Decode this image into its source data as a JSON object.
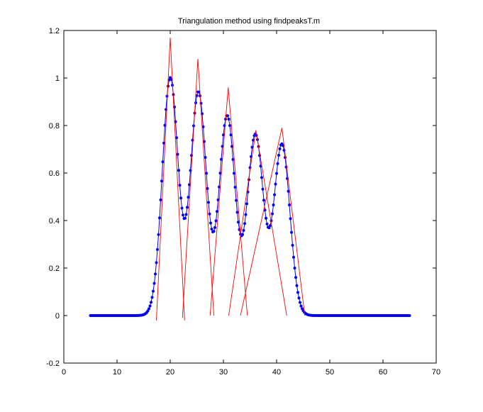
{
  "chart_data": {
    "type": "line",
    "title": "Triangulation method using findpeaksT.m",
    "xlabel": "",
    "ylabel": "",
    "xlim": [
      0,
      70
    ],
    "ylim": [
      -0.2,
      1.2
    ],
    "x_ticks": [
      "0",
      "10",
      "20",
      "30",
      "40",
      "50",
      "60",
      "70"
    ],
    "y_ticks": [
      "-0.2",
      "0",
      "0.2",
      "0.4",
      "0.6",
      "0.8",
      "1",
      "1.2"
    ],
    "grid": false,
    "legend": "none",
    "signal": {
      "color": "#0000ff",
      "marker": "dot",
      "x_range": [
        5,
        65
      ],
      "step": 0.2,
      "peaks": [
        {
          "x": 20.0,
          "y": 1.0
        },
        {
          "x": 25.3,
          "y": 0.94
        },
        {
          "x": 30.7,
          "y": 0.84
        },
        {
          "x": 36.0,
          "y": 0.76
        },
        {
          "x": 41.0,
          "y": 0.72
        }
      ]
    },
    "triangle_fits": {
      "color": "#ff0000",
      "segments": [
        {
          "x1": 17.4,
          "y1": -0.02,
          "x2": 20.0,
          "y2": 1.17
        },
        {
          "x1": 20.0,
          "y1": 1.17,
          "x2": 22.7,
          "y2": -0.02
        },
        {
          "x1": 22.3,
          "y1": -0.01,
          "x2": 25.2,
          "y2": 1.08
        },
        {
          "x1": 25.2,
          "y1": 1.08,
          "x2": 28.2,
          "y2": 0.0
        },
        {
          "x1": 27.5,
          "y1": 0.0,
          "x2": 30.9,
          "y2": 0.96
        },
        {
          "x1": 30.9,
          "y1": 0.96,
          "x2": 34.5,
          "y2": 0.0
        },
        {
          "x1": 31.0,
          "y1": 0.0,
          "x2": 36.1,
          "y2": 0.78
        },
        {
          "x1": 36.1,
          "y1": 0.78,
          "x2": 41.9,
          "y2": 0.0
        },
        {
          "x1": 33.2,
          "y1": 0.0,
          "x2": 41.0,
          "y2": 0.79
        },
        {
          "x1": 41.0,
          "y1": 0.79,
          "x2": 45.3,
          "y2": 0.0
        }
      ]
    }
  }
}
